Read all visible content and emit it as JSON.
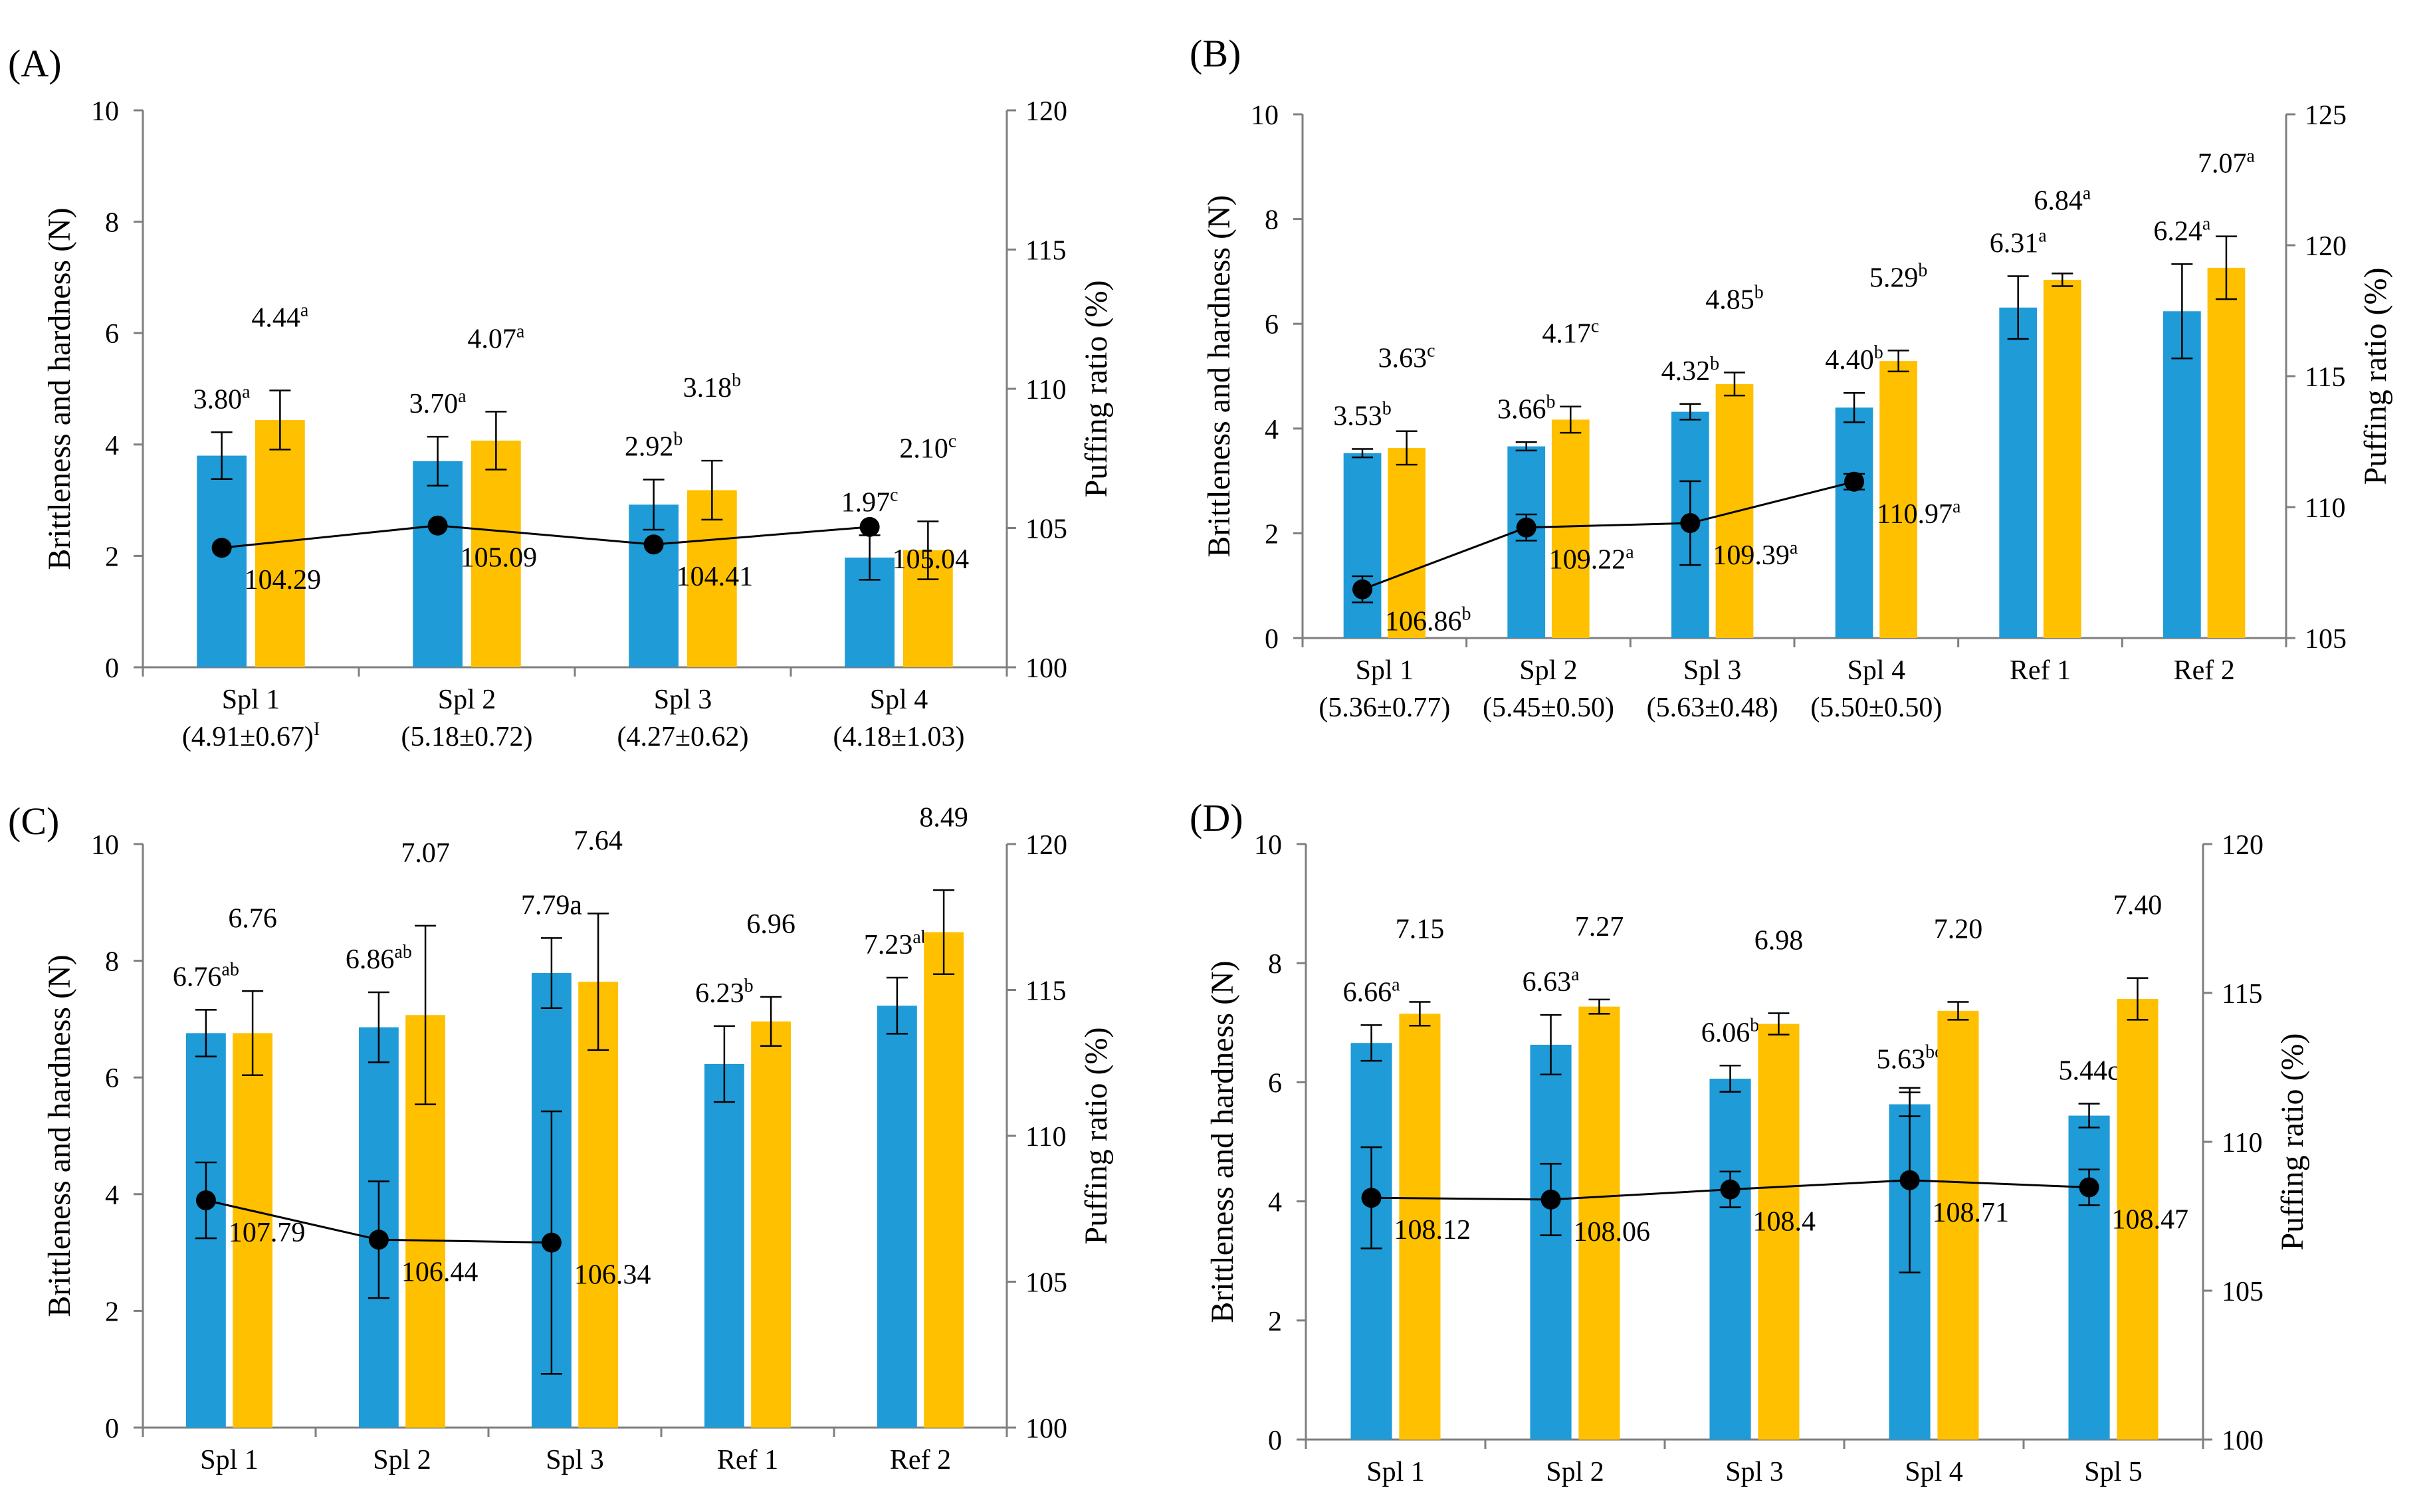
{
  "colors": {
    "brittleness": "#1f9bd7",
    "hardness": "#ffc000",
    "line": "#000000",
    "axis": "#7f7f7f"
  },
  "chart_data": [
    {
      "type": "bar",
      "panel_label": "(A)",
      "ylabel": "Brittleness and hardness (N)",
      "y2label": "Puffing ratio (%)",
      "ylim": [
        0,
        10
      ],
      "y2lim": [
        100,
        120
      ],
      "yticks": [
        "0",
        "2",
        "4",
        "6",
        "8",
        "10"
      ],
      "y2ticks": [
        "100",
        "105",
        "110",
        "115",
        "120"
      ],
      "categories": [
        "Spl 1",
        "Spl 2",
        "Spl 3",
        "Spl 4"
      ],
      "category_sub": [
        "(4.91±0.67)",
        "(5.18±0.72)",
        "(4.27±0.62)",
        "(4.18±1.03)"
      ],
      "category_sub_sup": [
        "I",
        "",
        "",
        ""
      ],
      "series": [
        {
          "name": "Brittleness",
          "values": [
            3.8,
            3.7,
            2.92,
            1.97
          ],
          "errors": [
            0.42,
            0.44,
            0.45,
            0.4
          ],
          "labels": [
            "3.80",
            "3.70",
            "2.92",
            "1.97"
          ],
          "letters": [
            "a",
            "a",
            "b",
            "c"
          ]
        },
        {
          "name": "Hardness",
          "values": [
            4.44,
            4.07,
            3.18,
            2.1
          ],
          "errors": [
            0.53,
            0.52,
            0.53,
            0.52
          ],
          "labels": [
            "4.44",
            "4.07",
            "3.18",
            "2.10"
          ],
          "letters": [
            "a",
            "a",
            "b",
            "c"
          ]
        }
      ],
      "puffing": {
        "values": [
          104.29,
          105.09,
          104.41,
          105.04
        ],
        "errors": [
          0,
          0,
          0,
          0
        ],
        "labels": [
          "104.29",
          "105.09",
          "104.41",
          "105.04"
        ],
        "letters": [
          "",
          "",
          "",
          ""
        ]
      }
    },
    {
      "type": "bar",
      "panel_label": "(B)",
      "ylabel": "Brittleness and hardness (N)",
      "y2label": "Puffing ratio (%)",
      "ylim": [
        0,
        10
      ],
      "y2lim": [
        105,
        125
      ],
      "yticks": [
        "0",
        "2",
        "4",
        "6",
        "8",
        "10"
      ],
      "y2ticks": [
        "105",
        "110",
        "115",
        "120",
        "125"
      ],
      "categories": [
        "Spl 1",
        "Spl 2",
        "Spl 3",
        "Spl 4",
        "Ref 1",
        "Ref 2"
      ],
      "category_sub": [
        "(5.36±0.77)",
        "(5.45±0.50)",
        "(5.63±0.48)",
        "(5.50±0.50)",
        "",
        ""
      ],
      "category_sub_sup": [
        "",
        "",
        "",
        "",
        "",
        ""
      ],
      "series": [
        {
          "name": "Brittleness",
          "values": [
            3.53,
            3.66,
            4.32,
            4.4,
            6.31,
            6.24
          ],
          "errors": [
            0.08,
            0.08,
            0.15,
            0.28,
            0.6,
            0.9
          ],
          "labels": [
            "3.53",
            "3.66",
            "4.32",
            "4.40",
            "6.31",
            "6.24"
          ],
          "letters": [
            "b",
            "b",
            "b",
            "b",
            "a",
            "a"
          ]
        },
        {
          "name": "Hardness",
          "values": [
            3.63,
            4.17,
            4.85,
            5.29,
            6.84,
            7.07
          ],
          "errors": [
            0.32,
            0.25,
            0.22,
            0.2,
            0.12,
            0.6
          ],
          "labels": [
            "3.63",
            "4.17",
            "4.85",
            "5.29",
            "6.84",
            "7.07"
          ],
          "letters": [
            "c",
            "c",
            "b",
            "b",
            "a",
            "a"
          ]
        }
      ],
      "puffing": {
        "values": [
          106.86,
          109.22,
          109.39,
          110.97
        ],
        "errors": [
          0.5,
          0.5,
          1.6,
          0.3
        ],
        "labels": [
          "106.86",
          "109.22",
          "109.39",
          "110.97"
        ],
        "letters": [
          "b",
          "a",
          "a",
          "a"
        ]
      }
    },
    {
      "type": "bar",
      "panel_label": "(C)",
      "ylabel": "Brittleness and hardness (N)",
      "y2label": "Puffing ratio (%)",
      "ylim": [
        0,
        10
      ],
      "y2lim": [
        100,
        120
      ],
      "yticks": [
        "0",
        "2",
        "4",
        "6",
        "8",
        "10"
      ],
      "y2ticks": [
        "100",
        "105",
        "110",
        "115",
        "120"
      ],
      "categories": [
        "Spl 1",
        "Spl 2",
        "Spl 3",
        "Ref 1",
        "Ref 2"
      ],
      "category_sub": [
        "",
        "",
        "",
        "",
        ""
      ],
      "category_sub_sup": [
        "",
        "",
        "",
        "",
        ""
      ],
      "series": [
        {
          "name": "Brittleness",
          "values": [
            6.76,
            6.86,
            7.79,
            6.23,
            7.23
          ],
          "errors": [
            0.4,
            0.6,
            0.6,
            0.65,
            0.48
          ],
          "labels": [
            "6.76",
            "6.86",
            "7.79a",
            "6.23",
            "7.23"
          ],
          "letters": [
            "ab",
            "ab",
            "",
            "b",
            "ab"
          ]
        },
        {
          "name": "Hardness",
          "values": [
            6.76,
            7.07,
            7.64,
            6.96,
            8.49
          ],
          "errors": [
            0.72,
            1.53,
            1.17,
            0.42,
            0.72
          ],
          "labels": [
            "6.76",
            "7.07",
            "7.64",
            "6.96",
            "8.49"
          ],
          "letters": [
            "",
            "",
            "",
            "",
            ""
          ]
        }
      ],
      "puffing": {
        "values": [
          107.79,
          106.44,
          106.34
        ],
        "errors": [
          1.3,
          2.0,
          4.5
        ],
        "labels": [
          "107.79",
          "106.44",
          "106.34"
        ],
        "letters": [
          "",
          "",
          ""
        ]
      }
    },
    {
      "type": "bar",
      "panel_label": "(D)",
      "ylabel": "Brittleness and hardness (N)",
      "y2label": "Puffing ratio (%)",
      "ylim": [
        0,
        10
      ],
      "y2lim": [
        100,
        120
      ],
      "yticks": [
        "0",
        "2",
        "4",
        "6",
        "8",
        "10"
      ],
      "y2ticks": [
        "100",
        "105",
        "110",
        "115",
        "120"
      ],
      "categories": [
        "Spl 1",
        "Spl 2",
        "Spl 3",
        "Spl 4",
        "Spl 5"
      ],
      "category_sub": [
        "",
        "",
        "",
        "",
        ""
      ],
      "category_sub_sup": [
        "",
        "",
        "",
        "",
        ""
      ],
      "series": [
        {
          "name": "Brittleness",
          "values": [
            6.66,
            6.63,
            6.06,
            5.63,
            5.44
          ],
          "errors": [
            0.3,
            0.5,
            0.22,
            0.2,
            0.2
          ],
          "labels": [
            "6.66",
            "6.63",
            "6.06",
            "5.63",
            "5.44c"
          ],
          "letters": [
            "a",
            "a",
            "b",
            "bc",
            ""
          ]
        },
        {
          "name": "Hardness",
          "values": [
            7.15,
            7.27,
            6.98,
            7.2,
            7.4
          ],
          "errors": [
            0.2,
            0.12,
            0.18,
            0.15,
            0.35
          ],
          "labels": [
            "7.15",
            "7.27",
            "6.98",
            "7.20",
            "7.40"
          ],
          "letters": [
            "",
            "",
            "",
            "",
            ""
          ]
        }
      ],
      "puffing": {
        "values": [
          108.12,
          108.06,
          108.4,
          108.71,
          108.47
        ],
        "errors": [
          1.7,
          1.2,
          0.6,
          3.1,
          0.6
        ],
        "labels": [
          "108.12",
          "108.06",
          "108.4",
          "108.71",
          "108.47"
        ],
        "letters": [
          "",
          "",
          "",
          "",
          ""
        ]
      }
    }
  ]
}
